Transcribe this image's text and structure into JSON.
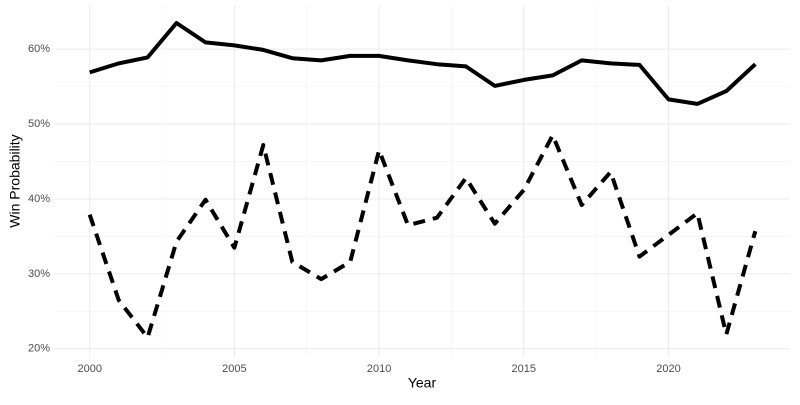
{
  "chart_data": {
    "type": "line",
    "x_label": "Year",
    "y_label": "Win Probability",
    "x": [
      2000,
      2001,
      2002,
      2003,
      2004,
      2005,
      2006,
      2007,
      2008,
      2009,
      2010,
      2011,
      2012,
      2013,
      2014,
      2015,
      2016,
      2017,
      2018,
      2019,
      2020,
      2021,
      2022,
      2023
    ],
    "series": [
      {
        "color": "#000000",
        "dash": "solid",
        "values": [
          56.9,
          58.1,
          58.9,
          63.5,
          60.9,
          60.5,
          59.9,
          58.8,
          58.5,
          59.1,
          59.1,
          58.5,
          58.0,
          57.7,
          55.1,
          55.9,
          56.5,
          58.5,
          58.1,
          57.9,
          53.3,
          52.7,
          54.4,
          58.0
        ]
      },
      {
        "color": "#000000",
        "dash": "dashed",
        "values": [
          37.9,
          26.5,
          21.5,
          34.3,
          39.9,
          33.5,
          47.2,
          31.6,
          29.3,
          31.6,
          46.5,
          36.5,
          37.5,
          42.8,
          36.7,
          41.2,
          48.5,
          39.2,
          43.6,
          32.3,
          35.2,
          38.1,
          21.9,
          35.7
        ]
      }
    ],
    "xlim": [
      1998.8,
      2024.2
    ],
    "xticks": [
      2000,
      2005,
      2010,
      2015,
      2020
    ],
    "ylim": [
      18.9,
      65.9
    ],
    "yticks": [
      {
        "value": 20,
        "label": "20%"
      },
      {
        "value": 30,
        "label": "30%"
      },
      {
        "value": 40,
        "label": "40%"
      },
      {
        "value": 50,
        "label": "50%"
      },
      {
        "value": 60,
        "label": "60%"
      }
    ],
    "grid": true
  }
}
